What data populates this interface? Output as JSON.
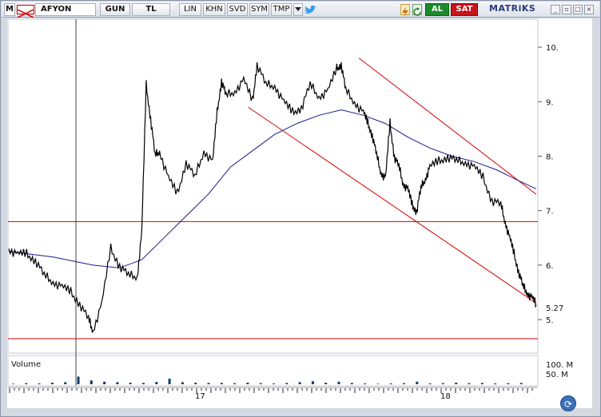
{
  "toolbar": {
    "menu_label": "M",
    "symbol": "AFYON",
    "period": "GUN",
    "currency": "TL",
    "scale": "LIN",
    "khn": "KHN",
    "svd": "SVD",
    "sym": "SYM",
    "tmp": "TMP",
    "buy_label": "AL",
    "sell_label": "SAT",
    "brand": "MATRiKS"
  },
  "colors": {
    "price_line": "#000000",
    "moving_average": "#1a1a8a",
    "trendline": "#d40000",
    "volume_bar": "#0b3c6e",
    "buy": "#1c8a2a",
    "sell": "#c8141c"
  },
  "icons": [
    "menu-icon",
    "flag-icon",
    "dropdown-icon",
    "twitter-icon",
    "lightning-icon",
    "refresh-icon",
    "minimize-icon",
    "restore-icon",
    "maximize-icon",
    "close-icon"
  ],
  "chart_data": {
    "type": "line",
    "y_ticks": [
      "10.",
      "9.",
      "8.",
      "7.",
      "6.",
      "5."
    ],
    "last_value_label": "5.27",
    "x_ticks": [
      "17",
      "18"
    ],
    "volume_label": "Volume",
    "volume_ticks": [
      "100. M",
      "50. M"
    ],
    "price_series": [
      [
        0,
        6.3
      ],
      [
        4,
        6.2
      ],
      [
        8,
        6.2
      ],
      [
        12,
        6.1
      ],
      [
        16,
        5.8
      ],
      [
        20,
        5.7
      ],
      [
        24,
        5.6
      ],
      [
        28,
        5.5
      ],
      [
        32,
        5.3
      ],
      [
        36,
        5.0
      ],
      [
        38,
        4.8
      ],
      [
        42,
        5.3
      ],
      [
        46,
        6.3
      ],
      [
        50,
        6.0
      ],
      [
        54,
        5.8
      ],
      [
        58,
        5.8
      ],
      [
        60,
        6.6
      ],
      [
        62,
        9.3
      ],
      [
        64,
        8.7
      ],
      [
        66,
        8.0
      ],
      [
        68,
        8.1
      ],
      [
        72,
        7.6
      ],
      [
        76,
        7.3
      ],
      [
        80,
        7.9
      ],
      [
        84,
        7.6
      ],
      [
        88,
        8.1
      ],
      [
        92,
        7.9
      ],
      [
        94,
        8.8
      ],
      [
        96,
        9.4
      ],
      [
        98,
        9.1
      ],
      [
        102,
        9.2
      ],
      [
        106,
        9.4
      ],
      [
        110,
        9.0
      ],
      [
        112,
        9.7
      ],
      [
        116,
        9.3
      ],
      [
        120,
        9.3
      ],
      [
        124,
        9.0
      ],
      [
        128,
        8.8
      ],
      [
        132,
        8.9
      ],
      [
        136,
        9.3
      ],
      [
        140,
        9.1
      ],
      [
        144,
        9.2
      ],
      [
        148,
        9.6
      ],
      [
        150,
        9.7
      ],
      [
        152,
        9.2
      ],
      [
        156,
        9.0
      ],
      [
        160,
        8.8
      ],
      [
        162,
        8.6
      ],
      [
        164,
        8.4
      ],
      [
        166,
        8.0
      ],
      [
        168,
        7.7
      ],
      [
        170,
        7.6
      ],
      [
        172,
        8.6
      ],
      [
        174,
        8.0
      ],
      [
        176,
        7.8
      ],
      [
        178,
        7.5
      ],
      [
        180,
        7.4
      ],
      [
        182,
        7.1
      ],
      [
        184,
        7.0
      ],
      [
        186,
        7.4
      ],
      [
        188,
        7.6
      ],
      [
        190,
        7.8
      ],
      [
        194,
        7.9
      ],
      [
        198,
        8.0
      ],
      [
        202,
        7.9
      ],
      [
        206,
        7.9
      ],
      [
        210,
        7.8
      ],
      [
        214,
        7.6
      ],
      [
        218,
        7.2
      ],
      [
        222,
        7.1
      ],
      [
        224,
        6.8
      ],
      [
        226,
        6.5
      ],
      [
        228,
        6.2
      ],
      [
        230,
        5.9
      ],
      [
        232,
        5.6
      ],
      [
        234,
        5.5
      ],
      [
        236,
        5.4
      ],
      [
        238,
        5.27
      ]
    ],
    "moving_average": [
      [
        0,
        6.25
      ],
      [
        20,
        6.15
      ],
      [
        38,
        6.0
      ],
      [
        50,
        5.95
      ],
      [
        60,
        6.1
      ],
      [
        70,
        6.5
      ],
      [
        80,
        6.9
      ],
      [
        90,
        7.3
      ],
      [
        100,
        7.8
      ],
      [
        110,
        8.1
      ],
      [
        120,
        8.4
      ],
      [
        130,
        8.6
      ],
      [
        140,
        8.75
      ],
      [
        150,
        8.85
      ],
      [
        160,
        8.75
      ],
      [
        170,
        8.6
      ],
      [
        180,
        8.35
      ],
      [
        190,
        8.15
      ],
      [
        200,
        8.0
      ],
      [
        210,
        7.9
      ],
      [
        220,
        7.75
      ],
      [
        230,
        7.55
      ],
      [
        238,
        7.4
      ]
    ],
    "horizontal_lines": [
      6.8,
      4.65
    ],
    "trendlines": [
      {
        "from": [
          108,
          8.9
        ],
        "to": [
          238,
          5.3
        ]
      },
      {
        "from": [
          158,
          9.8
        ],
        "to": [
          238,
          7.3
        ]
      }
    ],
    "volume_series": [
      2,
      4,
      3,
      6,
      8,
      30,
      15,
      10,
      8,
      6,
      5,
      9,
      22,
      8,
      6,
      5,
      5,
      4,
      6,
      4,
      3,
      5,
      8,
      12,
      6,
      10,
      5,
      3,
      2,
      3,
      4,
      10,
      3,
      4,
      6,
      4,
      5,
      3,
      4,
      5
    ]
  }
}
